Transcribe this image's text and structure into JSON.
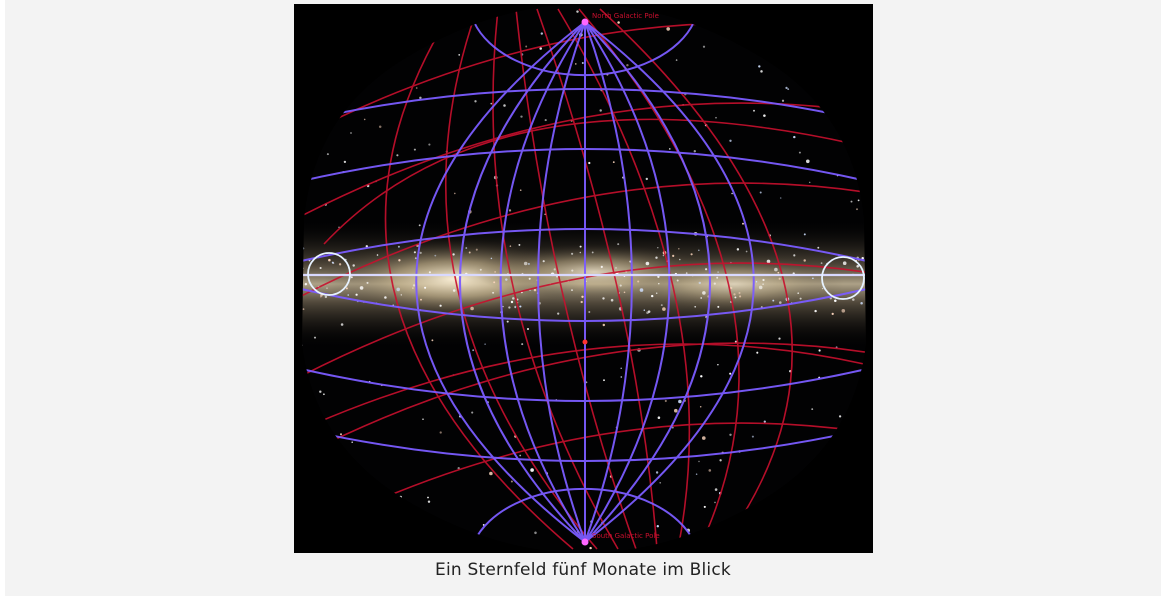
{
  "figure": {
    "caption": "Ein Sternfeld fünf Monate im Blick",
    "image_label": "starfield-allsky-map",
    "colors": {
      "background": "#f3f3f3",
      "sky": "#000000",
      "ecliptic_grid": "#c8102e",
      "galactic_grid": "#7b5cff",
      "galactic_equator": "#d9d9ff",
      "milky_way": "#e8dcc0"
    },
    "pole_labels": {
      "north": "North Galactic Pole",
      "south": "South Galactic Pole"
    }
  }
}
